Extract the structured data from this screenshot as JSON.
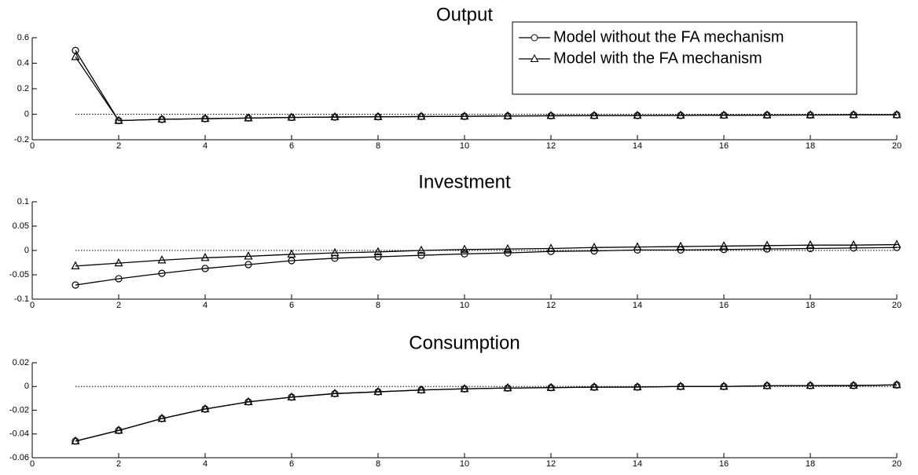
{
  "chart_data": [
    {
      "type": "line",
      "title": "Output",
      "legend": "upper right",
      "hline": 0,
      "x": [
        1,
        2,
        3,
        4,
        5,
        6,
        7,
        8,
        9,
        10,
        11,
        12,
        13,
        14,
        15,
        16,
        17,
        18,
        19,
        20
      ],
      "series": [
        {
          "name": "Model without the FA mechanism",
          "color": "#000000",
          "marker": "circle",
          "values": [
            0.5,
            -0.05,
            -0.04,
            -0.035,
            -0.03,
            -0.025,
            -0.022,
            -0.02,
            -0.018,
            -0.016,
            -0.014,
            -0.012,
            -0.011,
            -0.01,
            -0.009,
            -0.008,
            -0.007,
            -0.006,
            -0.005,
            -0.005
          ]
        },
        {
          "name": "Model with the FA mechanism",
          "color": "#000000",
          "marker": "triangle",
          "values": [
            0.45,
            -0.05,
            -0.04,
            -0.035,
            -0.03,
            -0.025,
            -0.022,
            -0.02,
            -0.018,
            -0.016,
            -0.014,
            -0.012,
            -0.011,
            -0.01,
            -0.009,
            -0.008,
            -0.007,
            -0.006,
            -0.005,
            -0.005
          ]
        }
      ],
      "xlim": [
        0,
        20
      ],
      "xticks": [
        0,
        2,
        4,
        6,
        8,
        10,
        12,
        14,
        16,
        18,
        20
      ],
      "ylim": [
        -0.2,
        0.6
      ],
      "yticks": [
        -0.2,
        0,
        0.2,
        0.4,
        0.6
      ]
    },
    {
      "type": "line",
      "title": "Investment",
      "hline": 0,
      "x": [
        1,
        2,
        3,
        4,
        5,
        6,
        7,
        8,
        9,
        10,
        11,
        12,
        13,
        14,
        15,
        16,
        17,
        18,
        19,
        20
      ],
      "series": [
        {
          "color": "#000000",
          "marker": "circle",
          "values": [
            -0.071,
            -0.058,
            -0.047,
            -0.037,
            -0.029,
            -0.021,
            -0.016,
            -0.013,
            -0.01,
            -0.007,
            -0.005,
            -0.002,
            -0.001,
            0.001,
            0.001,
            0.002,
            0.003,
            0.004,
            0.005,
            0.006
          ]
        },
        {
          "color": "#000000",
          "marker": "triangle",
          "values": [
            -0.032,
            -0.026,
            -0.02,
            -0.015,
            -0.012,
            -0.008,
            -0.005,
            -0.003,
            0,
            0.002,
            0.003,
            0.004,
            0.006,
            0.007,
            0.008,
            0.009,
            0.01,
            0.011,
            0.011,
            0.012
          ]
        }
      ],
      "xlim": [
        0,
        20
      ],
      "xticks": [
        0,
        2,
        4,
        6,
        8,
        10,
        12,
        14,
        16,
        18,
        20
      ],
      "ylim": [
        -0.1,
        0.1
      ],
      "yticks": [
        -0.1,
        -0.05,
        0,
        0.05,
        0.1
      ]
    },
    {
      "type": "line",
      "title": "Consumption",
      "hline": 0,
      "x": [
        1,
        2,
        3,
        4,
        5,
        6,
        7,
        8,
        9,
        10,
        11,
        12,
        13,
        14,
        15,
        16,
        17,
        18,
        19,
        20
      ],
      "series": [
        {
          "color": "#000000",
          "marker": "circle",
          "values": [
            -0.046,
            -0.037,
            -0.027,
            -0.019,
            -0.013,
            -0.009,
            -0.006,
            -0.0045,
            -0.003,
            -0.002,
            -0.0013,
            -0.001,
            -0.0006,
            -0.0005,
            0,
            0,
            0.0006,
            0.0007,
            0.0008,
            0.0013
          ]
        },
        {
          "color": "#000000",
          "marker": "triangle",
          "values": [
            -0.046,
            -0.037,
            -0.027,
            -0.019,
            -0.013,
            -0.009,
            -0.006,
            -0.0045,
            -0.003,
            -0.002,
            -0.0013,
            -0.001,
            -0.0006,
            -0.0005,
            0,
            0,
            0.0006,
            0.0007,
            0.0008,
            0.0013
          ]
        }
      ],
      "xlim": [
        0,
        20
      ],
      "xticks": [
        0,
        2,
        4,
        6,
        8,
        10,
        12,
        14,
        16,
        18,
        20
      ],
      "ylim": [
        -0.06,
        0.02
      ],
      "yticks": [
        -0.06,
        -0.04,
        -0.02,
        0,
        0.02
      ]
    }
  ]
}
